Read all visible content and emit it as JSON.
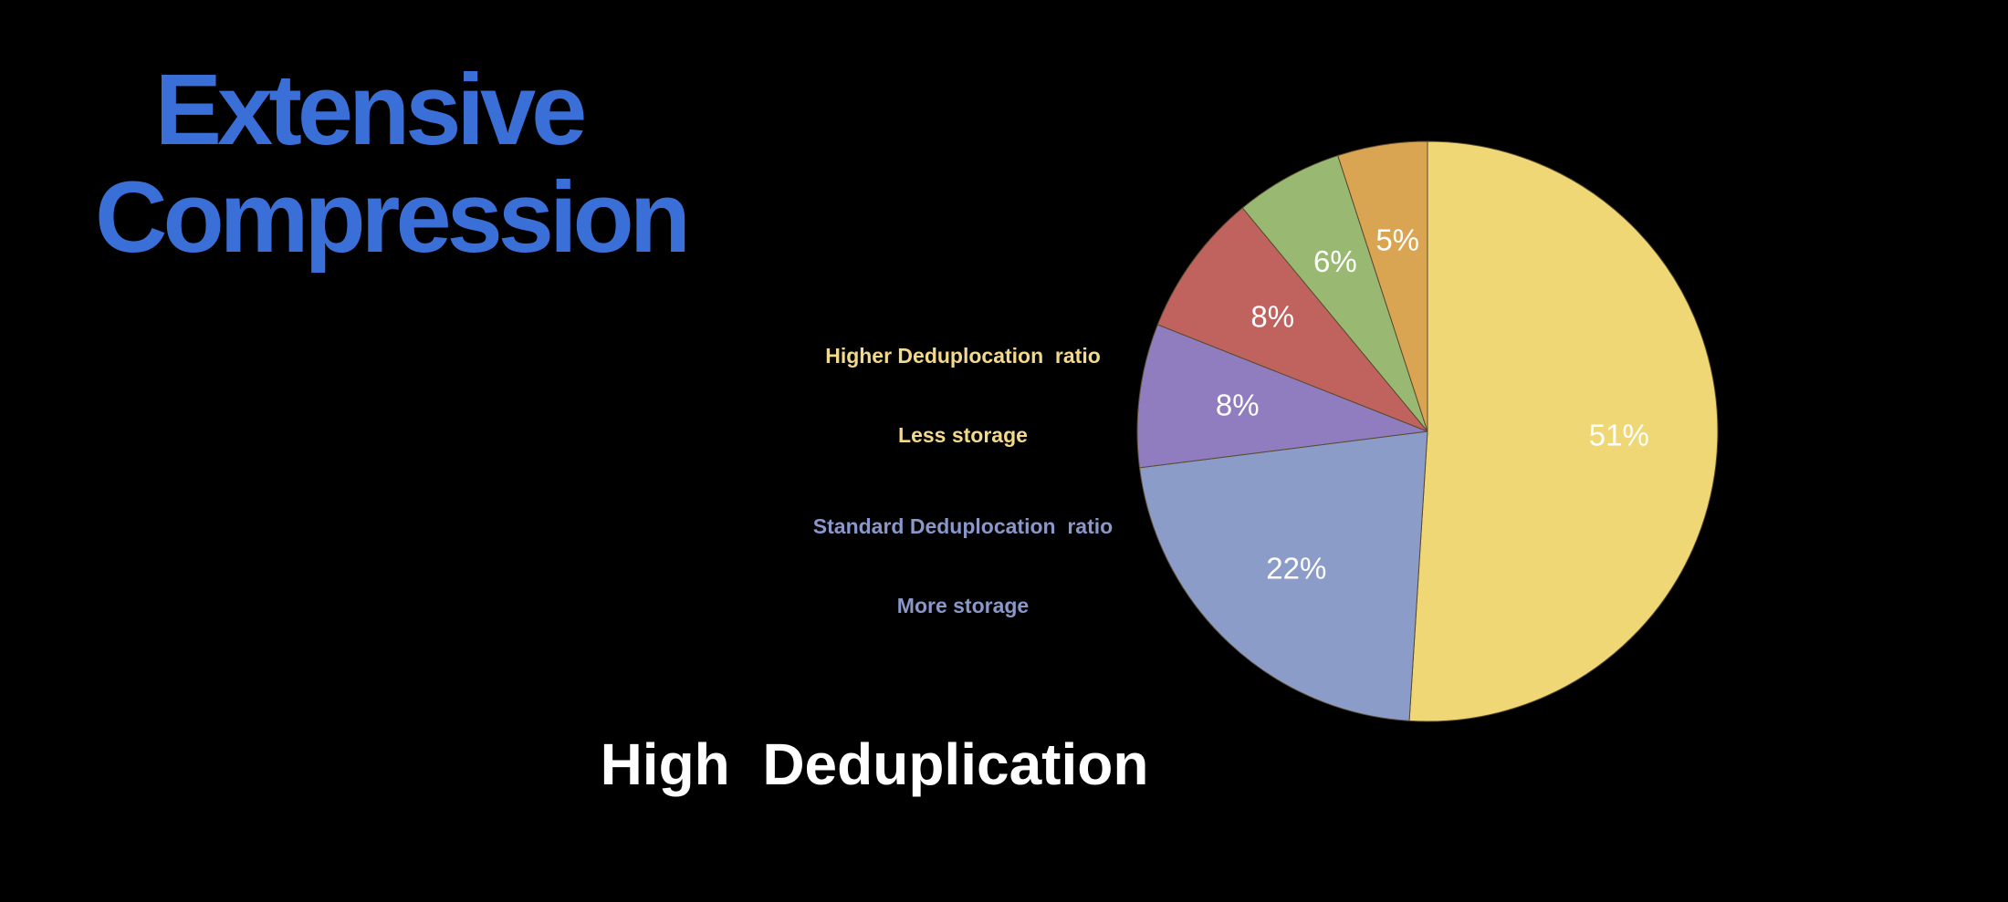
{
  "chart_data": {
    "type": "pie",
    "title": "Extensive Compression",
    "subtitle": "High  Deduplication",
    "values": [
      51,
      22,
      8,
      8,
      6,
      5
    ],
    "value_labels": [
      "51%",
      "22%",
      "8%",
      "8%",
      "6%",
      "5%"
    ],
    "colors": [
      "#efd775",
      "#8c9cc8",
      "#8f7dc0",
      "#c0625e",
      "#99b972",
      "#daa552"
    ],
    "annotations": [
      {
        "lines": [
          "Higher Deduplocation  ratio",
          "Less storage"
        ],
        "color": "#f3d98c"
      },
      {
        "lines": [
          "Standard Deduplocation  ratio",
          "More storage"
        ],
        "color": "#8a97c9"
      }
    ]
  }
}
